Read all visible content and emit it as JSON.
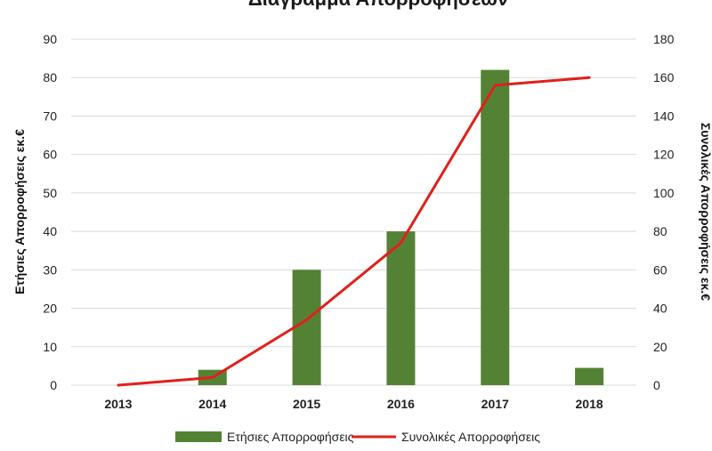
{
  "chart_data": {
    "type": "bar",
    "title": "Διάγραμμα Απορροφήσεων",
    "categories": [
      "2013",
      "2014",
      "2015",
      "2016",
      "2017",
      "2018"
    ],
    "series": [
      {
        "name": "Ετήσιες Απορροφήσεις",
        "kind": "bar",
        "axis": "left",
        "color": "#548235",
        "values": [
          0,
          4,
          30,
          40,
          82,
          4.5
        ]
      },
      {
        "name": "Συνολικές Απορροφήσεις",
        "kind": "line",
        "axis": "right",
        "color": "#e0201b",
        "values": [
          0,
          4,
          34,
          74,
          156,
          160
        ]
      }
    ],
    "y_left": {
      "label": "Ετήσιες Απορροφήσεις εκ.€",
      "ylim": [
        0,
        90
      ],
      "ticks": [
        "0",
        "10",
        "20",
        "30",
        "40",
        "50",
        "60",
        "70",
        "80",
        "90"
      ]
    },
    "y_right": {
      "label": "Συνολικές Απορροφήσεις εκ.€",
      "ylim": [
        0,
        180
      ],
      "ticks": [
        "0",
        "20",
        "40",
        "60",
        "80",
        "100",
        "120",
        "140",
        "160",
        "180"
      ]
    },
    "grid": true,
    "legend_position": "bottom"
  }
}
